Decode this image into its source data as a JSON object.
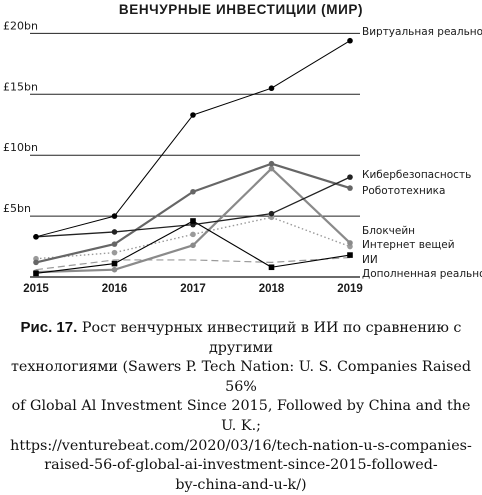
{
  "chart_data": {
    "type": "line",
    "title": "ВЕНЧУРНЫЕ ИНВЕСТИЦИИ (МИР)",
    "categories": [
      "2015",
      "2016",
      "2017",
      "2018",
      "2019"
    ],
    "ytick_labels": [
      "£5bn",
      "£10bn",
      "£15bn",
      "£20bn"
    ],
    "ylim": [
      0,
      20.5
    ],
    "grid": "horizontal",
    "series": [
      {
        "name": "ИИ",
        "values": [
          0.3,
          1.1,
          4.6,
          0.8,
          1.8
        ],
        "color": "#000000",
        "style": "solid",
        "width": 1.1,
        "marker": "square"
      },
      {
        "name": "Кибербезопасность",
        "values": [
          3.3,
          3.7,
          4.3,
          5.2,
          8.2
        ],
        "color": "#222222",
        "style": "solid",
        "width": 1.3,
        "marker": "circle"
      },
      {
        "name": "Робототехника",
        "values": [
          1.2,
          2.7,
          7.0,
          9.3,
          7.3
        ],
        "color": "#666666",
        "style": "solid",
        "width": 2.2,
        "marker": "circle"
      },
      {
        "name": "Блокчейн",
        "values": [
          0.4,
          0.6,
          2.6,
          8.9,
          2.8
        ],
        "color": "#8a8a8a",
        "style": "solid",
        "width": 2.2,
        "marker": "circle"
      },
      {
        "name": "Интернет вещей",
        "values": [
          1.5,
          2.0,
          3.5,
          4.9,
          2.5
        ],
        "color": "#9a9a9a",
        "style": "dotted",
        "width": 1.4,
        "marker": "circle"
      },
      {
        "name": "Виртуальная реальность",
        "values": [
          3.3,
          5.0,
          13.3,
          15.5,
          19.4
        ],
        "color": "#000000",
        "style": "solid",
        "width": 1.0,
        "marker": "circle"
      },
      {
        "name": "Дополненная реальность",
        "values": [
          0.6,
          1.4,
          1.4,
          1.2,
          1.6
        ],
        "color": "#9a9a9a",
        "style": "dashed",
        "width": 1.2,
        "marker": "none"
      }
    ]
  },
  "caption": {
    "label": "Рис. 17.",
    "text": " Рост венчурных инвестиций в ИИ по сравнению с другими\nтехнологиями (Sawers P. Tech Nation: U. S. Companies Raised 56%\nof Global Al Investment Since 2015, Followed by China and the U. K.;\nhttps://venturebeat.com/2020/03/16/tech-nation-u-s-companies-\nraised-56-of-global-ai-investment-since-2015-followed-\nby-china-and-u-k/)"
  }
}
